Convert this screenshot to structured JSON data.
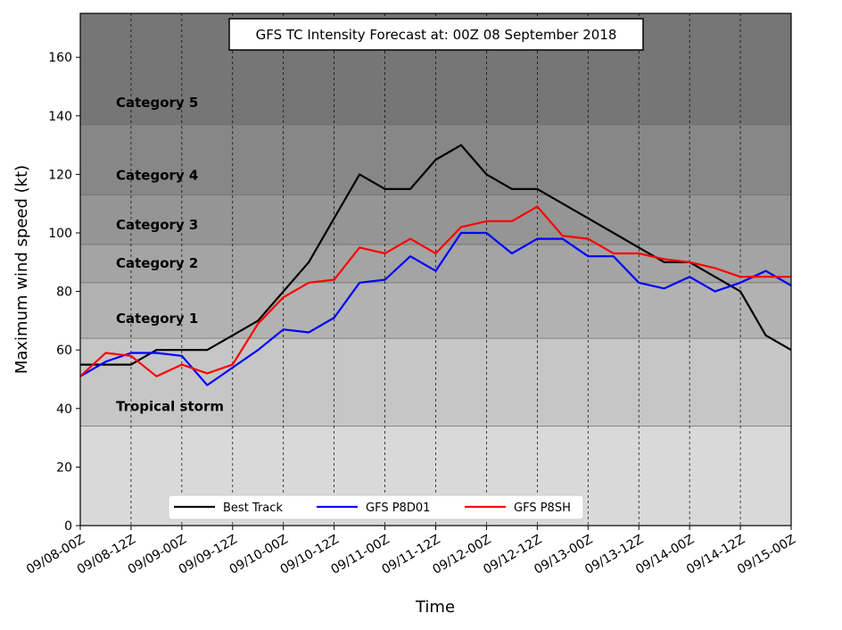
{
  "chart_data": {
    "type": "line",
    "title": "GFS TC Intensity Forecast at: 00Z 08 September 2018",
    "xlabel": "Time",
    "ylabel": "Maximum wind speed (kt)",
    "ylim": [
      0,
      175
    ],
    "yticks": [
      0,
      20,
      40,
      60,
      80,
      100,
      120,
      140,
      160
    ],
    "x_tick_labels": [
      "09/08-00Z",
      "09/08-12Z",
      "09/09-00Z",
      "09/09-12Z",
      "09/10-00Z",
      "09/10-12Z",
      "09/11-00Z",
      "09/11-12Z",
      "09/12-00Z",
      "09/12-12Z",
      "09/13-00Z",
      "09/13-12Z",
      "09/14-00Z",
      "09/14-12Z",
      "09/15-00Z"
    ],
    "x_unit": "6-hourly steps from 09/08-00Z",
    "grid": "vertical dashed",
    "legend_position": "bottom-center",
    "bands": [
      {
        "label": "",
        "from": 0,
        "to": 34,
        "color": "#d9d9d9"
      },
      {
        "label": "Tropical storm",
        "from": 34,
        "to": 64,
        "color": "#c6c6c6"
      },
      {
        "label": "Category 1",
        "from": 64,
        "to": 83,
        "color": "#b2b2b2"
      },
      {
        "label": "Category 2",
        "from": 83,
        "to": 96,
        "color": "#a4a4a4"
      },
      {
        "label": "Category 3",
        "from": 96,
        "to": 113,
        "color": "#959595"
      },
      {
        "label": "Category 4",
        "from": 113,
        "to": 137,
        "color": "#878787"
      },
      {
        "label": "Category 5",
        "from": 137,
        "to": 175,
        "color": "#767676"
      }
    ],
    "series": [
      {
        "name": "Best Track",
        "color": "#000000",
        "x": [
          0,
          1,
          2,
          3,
          4,
          5,
          6,
          7,
          8,
          9,
          10,
          11,
          12,
          13,
          14,
          15,
          16,
          17,
          18,
          19,
          20,
          21,
          22,
          23,
          24,
          25,
          26,
          27,
          28
        ],
        "y": [
          55,
          55,
          55,
          60,
          60,
          60,
          65,
          70,
          80,
          90,
          105,
          120,
          115,
          115,
          125,
          130,
          120,
          115,
          115,
          110,
          105,
          100,
          95,
          90,
          90,
          85,
          80,
          65,
          60
        ]
      },
      {
        "name": "GFS P8D01",
        "color": "#0000ff",
        "x": [
          0,
          1,
          2,
          3,
          4,
          5,
          6,
          7,
          8,
          9,
          10,
          11,
          12,
          13,
          14,
          15,
          16,
          17,
          18,
          19,
          20,
          21,
          22,
          23,
          24,
          25,
          26,
          27,
          28
        ],
        "y": [
          51,
          56,
          59,
          59,
          58,
          48,
          54,
          60,
          67,
          66,
          71,
          83,
          84,
          92,
          87,
          100,
          100,
          93,
          98,
          98,
          92,
          92,
          83,
          81,
          85,
          80,
          83,
          87,
          82
        ]
      },
      {
        "name": "GFS P8SH",
        "color": "#ff0000",
        "x": [
          0,
          1,
          2,
          3,
          4,
          5,
          6,
          7,
          8,
          9,
          10,
          11,
          12,
          13,
          14,
          15,
          16,
          17,
          18,
          19,
          20,
          21,
          22,
          23,
          24,
          25,
          26,
          27,
          28
        ],
        "y": [
          51,
          59,
          58,
          51,
          55,
          52,
          55,
          69,
          78,
          83,
          84,
          95,
          93,
          98,
          93,
          102,
          104,
          104,
          109,
          99,
          98,
          93,
          93,
          91,
          90,
          88,
          85,
          85,
          85
        ]
      }
    ]
  }
}
